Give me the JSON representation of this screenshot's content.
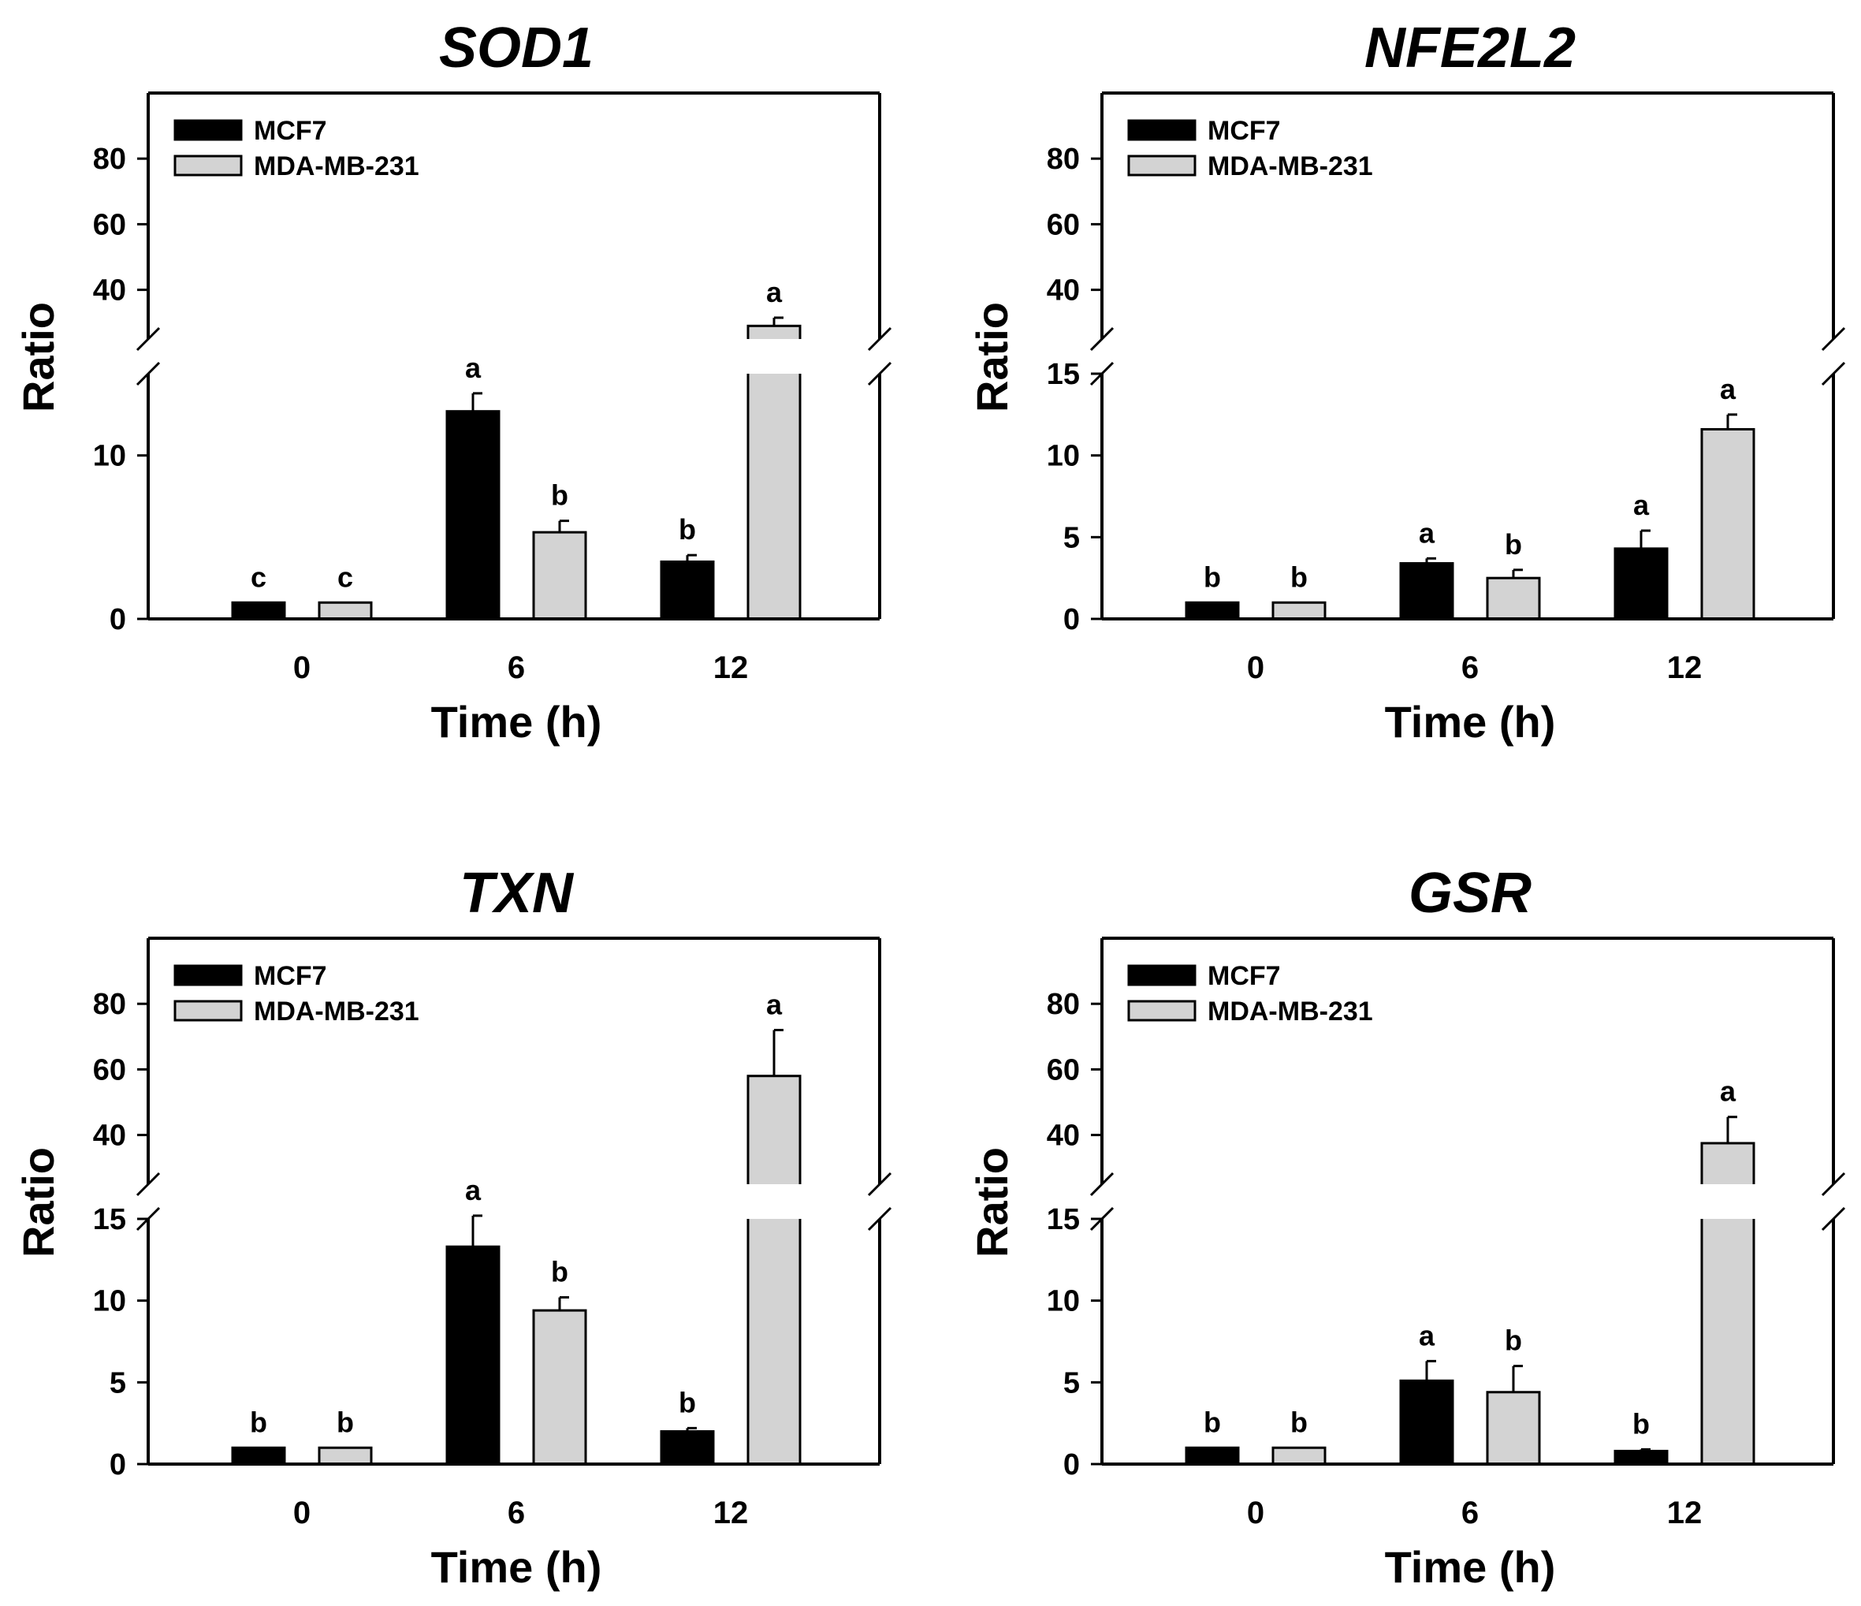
{
  "chart_data": [
    {
      "type": "bar",
      "title": "SOD1",
      "xlabel": "Time (h)",
      "ylabel": "Ratio",
      "categories": [
        "0",
        "6",
        "12"
      ],
      "y_break": {
        "lower_range": [
          0,
          15
        ],
        "upper_range": [
          25,
          100
        ]
      },
      "lower_ticks": [
        "0",
        "10"
      ],
      "upper_ticks": [
        "40",
        "60",
        "80"
      ],
      "series": [
        {
          "name": "MCF7",
          "color": "#000000",
          "values": [
            1.0,
            12.7,
            3.5
          ],
          "errors": [
            0.0,
            1.1,
            0.4
          ],
          "letters": [
            "c",
            "a",
            "b"
          ]
        },
        {
          "name": "MDA-MB-231",
          "color": "#d3d3d3",
          "values": [
            1.0,
            5.3,
            29.0
          ],
          "errors": [
            0.0,
            0.7,
            2.5
          ],
          "letters": [
            "c",
            "b",
            "a"
          ]
        }
      ]
    },
    {
      "type": "bar",
      "title": "NFE2L2",
      "xlabel": "Time (h)",
      "ylabel": "Ratio",
      "categories": [
        "0",
        "6",
        "12"
      ],
      "y_break": {
        "lower_range": [
          0,
          15
        ],
        "upper_range": [
          25,
          100
        ]
      },
      "lower_ticks": [
        "0",
        "5",
        "10",
        "15"
      ],
      "upper_ticks": [
        "40",
        "60",
        "80"
      ],
      "series": [
        {
          "name": "MCF7",
          "color": "#000000",
          "values": [
            1.0,
            3.4,
            4.3
          ],
          "errors": [
            0.0,
            0.3,
            1.1
          ],
          "letters": [
            "b",
            "a",
            "a"
          ]
        },
        {
          "name": "MDA-MB-231",
          "color": "#d3d3d3",
          "values": [
            1.0,
            2.5,
            11.6
          ],
          "errors": [
            0.0,
            0.5,
            0.9
          ],
          "letters": [
            "b",
            "b",
            "a"
          ]
        }
      ]
    },
    {
      "type": "bar",
      "title": "TXN",
      "xlabel": "Time (h)",
      "ylabel": "Ratio",
      "categories": [
        "0",
        "6",
        "12"
      ],
      "y_break": {
        "lower_range": [
          0,
          15
        ],
        "upper_range": [
          25,
          100
        ]
      },
      "lower_ticks": [
        "0",
        "5",
        "10",
        "15"
      ],
      "upper_ticks": [
        "40",
        "60",
        "80"
      ],
      "series": [
        {
          "name": "MCF7",
          "color": "#000000",
          "values": [
            1.0,
            13.3,
            2.0
          ],
          "errors": [
            0.0,
            2.1,
            0.2
          ],
          "letters": [
            "b",
            "a",
            "b"
          ]
        },
        {
          "name": "MDA-MB-231",
          "color": "#d3d3d3",
          "values": [
            1.0,
            9.4,
            58.0
          ],
          "errors": [
            0.0,
            0.8,
            14.0
          ],
          "letters": [
            "b",
            "b",
            "a"
          ]
        }
      ]
    },
    {
      "type": "bar",
      "title": "GSR",
      "xlabel": "Time (h)",
      "ylabel": "Ratio",
      "categories": [
        "0",
        "6",
        "12"
      ],
      "y_break": {
        "lower_range": [
          0,
          15
        ],
        "upper_range": [
          25,
          100
        ]
      },
      "lower_ticks": [
        "0",
        "5",
        "10",
        "15"
      ],
      "upper_ticks": [
        "40",
        "60",
        "80"
      ],
      "series": [
        {
          "name": "MCF7",
          "color": "#000000",
          "values": [
            1.0,
            5.1,
            0.8
          ],
          "errors": [
            0.0,
            1.2,
            0.1
          ],
          "letters": [
            "b",
            "a",
            "b"
          ]
        },
        {
          "name": "MDA-MB-231",
          "color": "#d3d3d3",
          "values": [
            1.0,
            4.4,
            37.5
          ],
          "errors": [
            0.0,
            1.6,
            8.0
          ],
          "letters": [
            "b",
            "b",
            "a"
          ]
        }
      ]
    }
  ]
}
